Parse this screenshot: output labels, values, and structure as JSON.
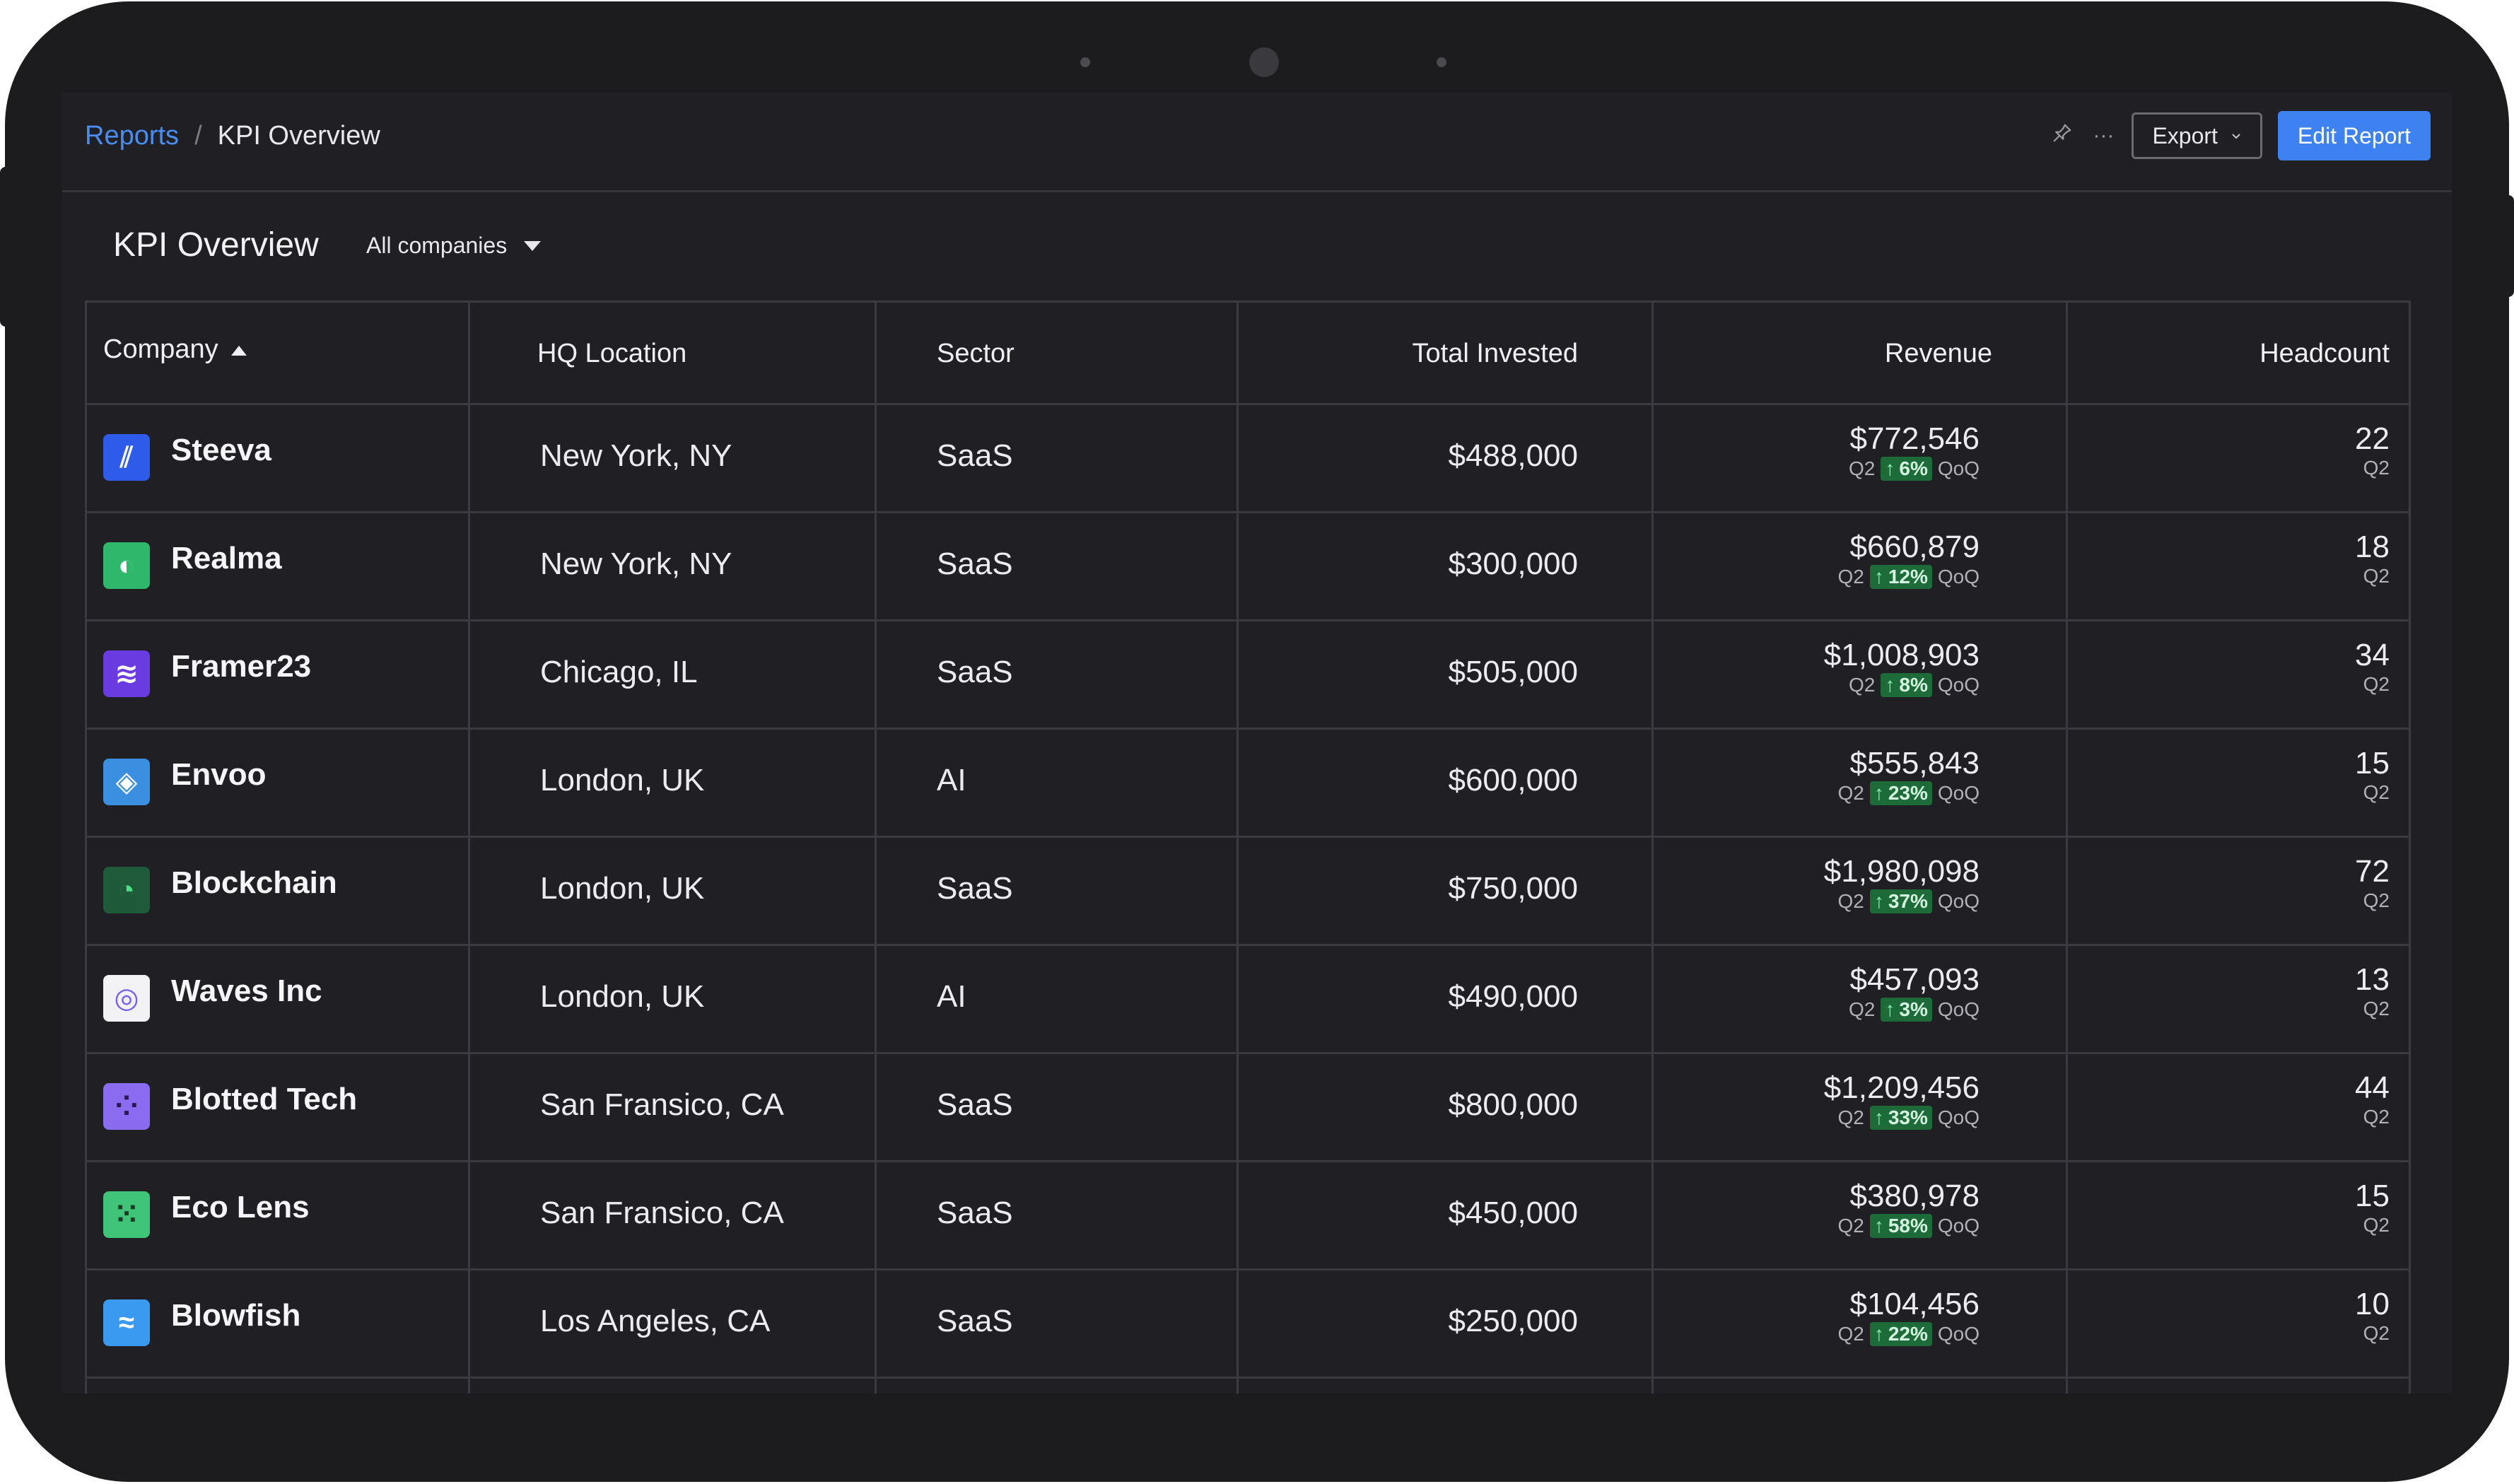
{
  "breadcrumb": {
    "parent": "Reports",
    "separator": "/",
    "current": "KPI Overview"
  },
  "toolbar": {
    "pin_icon": "pin-icon",
    "more_icon": "more-icon",
    "export_label": "Export",
    "edit_label": "Edit Report"
  },
  "page": {
    "title": "KPI Overview",
    "filter_value": "All companies"
  },
  "table": {
    "columns": [
      "Company",
      "HQ Location",
      "Sector",
      "Total Invested",
      "Revenue",
      "Headcount"
    ],
    "sort": {
      "column": "Company",
      "direction": "ascending"
    },
    "rows": [
      {
        "company": "Steeva",
        "logo_color": "#2f5bea",
        "location": "New York, NY",
        "sector": "SaaS",
        "invested": "$488,000",
        "revenue": "$772,546",
        "rev_period": "Q2",
        "rev_change": "6%",
        "rev_suffix": "QoQ",
        "headcount": "22",
        "hc_period": "Q2"
      },
      {
        "company": "Realma",
        "logo_color": "#2fb86b",
        "location": "New York, NY",
        "sector": "SaaS",
        "invested": "$300,000",
        "revenue": "$660,879",
        "rev_period": "Q2",
        "rev_change": "12%",
        "rev_suffix": "QoQ",
        "headcount": "18",
        "hc_period": "Q2"
      },
      {
        "company": "Framer23",
        "logo_color": "#6a3be0",
        "location": "Chicago, IL",
        "sector": "SaaS",
        "invested": "$505,000",
        "revenue": "$1,008,903",
        "rev_period": "Q2",
        "rev_change": "8%",
        "rev_suffix": "QoQ",
        "headcount": "34",
        "hc_period": "Q2"
      },
      {
        "company": "Envoo",
        "logo_color": "#3a8fe0",
        "location": "London, UK",
        "sector": "AI",
        "invested": "$600,000",
        "revenue": "$555,843",
        "rev_period": "Q2",
        "rev_change": "23%",
        "rev_suffix": "QoQ",
        "headcount": "15",
        "hc_period": "Q2"
      },
      {
        "company": "Blockchain",
        "logo_color": "#1f5a3a",
        "location": "London, UK",
        "sector": "SaaS",
        "invested": "$750,000",
        "revenue": "$1,980,098",
        "rev_period": "Q2",
        "rev_change": "37%",
        "rev_suffix": "QoQ",
        "headcount": "72",
        "hc_period": "Q2"
      },
      {
        "company": "Waves Inc",
        "logo_color": "#f2f2f5",
        "location": "London, UK",
        "sector": "AI",
        "invested": "$490,000",
        "revenue": "$457,093",
        "rev_period": "Q2",
        "rev_change": "3%",
        "rev_suffix": "QoQ",
        "headcount": "13",
        "hc_period": "Q2"
      },
      {
        "company": "Blotted Tech",
        "logo_color": "#8a6cf0",
        "location": "San Fransico, CA",
        "sector": "SaaS",
        "invested": "$800,000",
        "revenue": "$1,209,456",
        "rev_period": "Q2",
        "rev_change": "33%",
        "rev_suffix": "QoQ",
        "headcount": "44",
        "hc_period": "Q2"
      },
      {
        "company": "Eco Lens",
        "logo_color": "#3fc47a",
        "location": "San Fransico, CA",
        "sector": "SaaS",
        "invested": "$450,000",
        "revenue": "$380,978",
        "rev_period": "Q2",
        "rev_change": "58%",
        "rev_suffix": "QoQ",
        "headcount": "15",
        "hc_period": "Q2"
      },
      {
        "company": "Blowfish",
        "logo_color": "#3a9af0",
        "location": "Los Angeles, CA",
        "sector": "SaaS",
        "invested": "$250,000",
        "revenue": "$104,456",
        "rev_period": "Q2",
        "rev_change": "22%",
        "rev_suffix": "QoQ",
        "headcount": "10",
        "hc_period": "Q2"
      }
    ]
  }
}
